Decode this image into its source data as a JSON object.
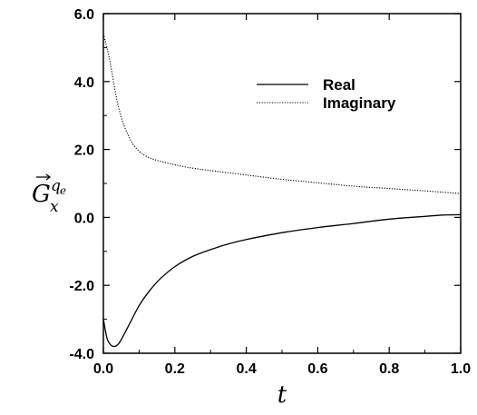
{
  "chart_data": {
    "type": "line",
    "title": "",
    "xlabel": "t",
    "ylabel": {
      "base": "G",
      "subscript": "x",
      "superscript": "q",
      "superscript_subscript": "e"
    },
    "xlim": [
      0.0,
      1.0
    ],
    "ylim": [
      -4.0,
      6.0
    ],
    "x_ticks": [
      {
        "value": 0.0,
        "label": "0.0"
      },
      {
        "value": 0.2,
        "label": "0.2"
      },
      {
        "value": 0.4,
        "label": "0.4"
      },
      {
        "value": 0.6,
        "label": "0.6"
      },
      {
        "value": 0.8,
        "label": "0.8"
      },
      {
        "value": 1.0,
        "label": "1.0"
      }
    ],
    "y_ticks": [
      {
        "value": -4.0,
        "label": "-4.0"
      },
      {
        "value": -2.0,
        "label": "-2.0"
      },
      {
        "value": 0.0,
        "label": "0.0"
      },
      {
        "value": 2.0,
        "label": "2.0"
      },
      {
        "value": 4.0,
        "label": "4.0"
      },
      {
        "value": 6.0,
        "label": "6.0"
      }
    ],
    "grid": false,
    "legend_position": "top-right",
    "series": [
      {
        "name": "Real",
        "style": "solid",
        "color": "#000000",
        "x": [
          0.0,
          0.01,
          0.02,
          0.03,
          0.04,
          0.05,
          0.07,
          0.1,
          0.13,
          0.16,
          0.2,
          0.25,
          0.3,
          0.35,
          0.4,
          0.5,
          0.6,
          0.7,
          0.8,
          0.9,
          0.95,
          1.0
        ],
        "y": [
          -3.0,
          -3.55,
          -3.75,
          -3.8,
          -3.75,
          -3.6,
          -3.2,
          -2.6,
          -2.15,
          -1.8,
          -1.45,
          -1.15,
          -0.95,
          -0.78,
          -0.65,
          -0.45,
          -0.3,
          -0.18,
          -0.05,
          0.03,
          0.07,
          0.08
        ]
      },
      {
        "name": "Imaginary",
        "style": "dotted",
        "color": "#000000",
        "x": [
          0.0,
          0.01,
          0.02,
          0.03,
          0.04,
          0.05,
          0.06,
          0.08,
          0.1,
          0.12,
          0.15,
          0.2,
          0.25,
          0.3,
          0.4,
          0.5,
          0.6,
          0.7,
          0.8,
          0.9,
          1.0
        ],
        "y": [
          5.4,
          5.0,
          4.5,
          3.9,
          3.35,
          2.95,
          2.65,
          2.2,
          1.95,
          1.8,
          1.68,
          1.55,
          1.45,
          1.38,
          1.25,
          1.12,
          1.02,
          0.92,
          0.85,
          0.78,
          0.7
        ]
      }
    ]
  }
}
